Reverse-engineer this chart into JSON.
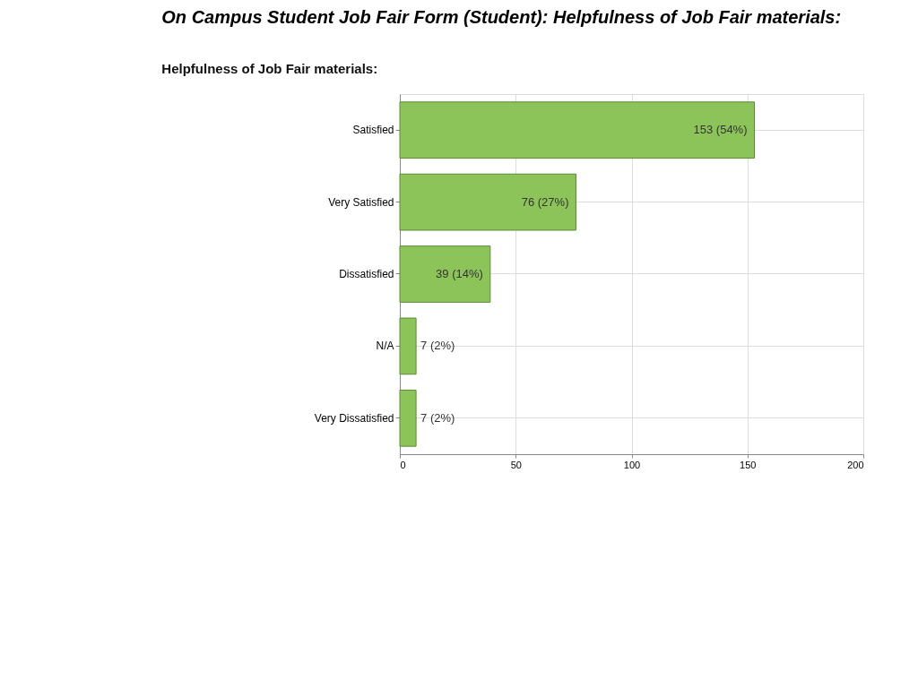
{
  "chart_data": {
    "type": "bar",
    "orientation": "horizontal",
    "title": "On Campus Student Job Fair Form (Student):  Helpfulness of Job Fair materials:",
    "subtitle": "Helpfulness of Job Fair materials:",
    "categories": [
      "Satisfied",
      "Very Satisfied",
      "Dissatisfied",
      "N/A",
      "Very Dissatisfied"
    ],
    "values": [
      153,
      76,
      39,
      7,
      7
    ],
    "value_labels": [
      "153 (54%)",
      "76 (27%)",
      "39 (14%)",
      "7 (2%)",
      "7 (2%)"
    ],
    "color": "#8cc45a",
    "xlim": [
      0,
      200
    ],
    "xticks": [
      0,
      50,
      100,
      150,
      200
    ],
    "grid": true
  }
}
